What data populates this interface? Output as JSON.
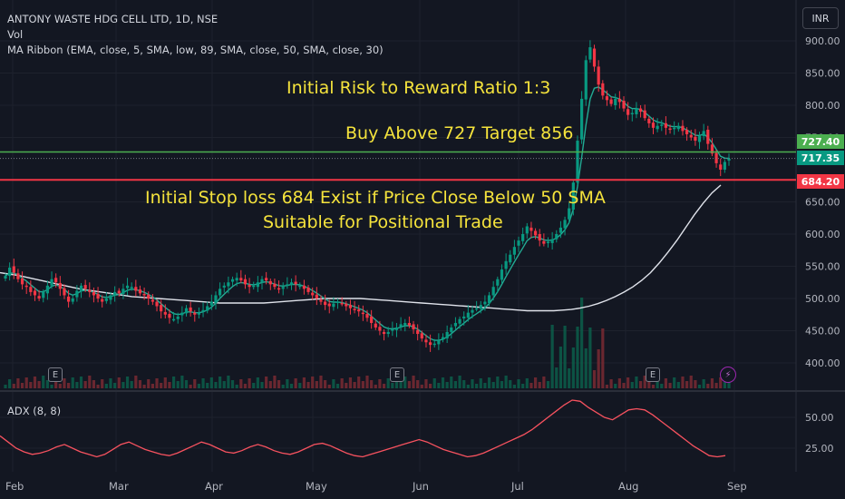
{
  "header": {
    "title": "ANTONY WASTE HDG CELL LTD, 1D, NSE",
    "vol_label": "Vol",
    "ma_label": "MA Ribbon (EMA, close, 5, SMA, low, 89, SMA, close, 50, SMA, close, 30)",
    "currency": "INR"
  },
  "annotations": {
    "line1": "Initial Risk to Reward Ratio 1:3",
    "line2": "Buy Above 727 Target 856",
    "line3": "Initial Stop loss 684 Exist if Price Close Below 50 SMA",
    "line4": "Suitable for Positional Trade"
  },
  "price_tags": {
    "buy": "727.40",
    "last": "717.35",
    "stop": "684.20"
  },
  "adx": {
    "label": "ADX (8, 8)"
  },
  "events": {
    "earnings_label": "E",
    "dividend_icon": "lightning-bolt-icon"
  },
  "colors": {
    "up": "#089981",
    "down": "#f23645",
    "buy_line": "#4caf50",
    "stop_line": "#f23645",
    "last_tag": "#089981",
    "sma50": "#e0e3eb",
    "ema5": "#22ab94",
    "adx_line": "#f7525f",
    "annotation": "#f5e33c"
  },
  "chart_data": [
    {
      "type": "line",
      "title": "ANTONY WASTE HDG CELL LTD, 1D, NSE",
      "ylim": [
        375,
        910
      ],
      "y_ticks": [
        "900.00",
        "850.00",
        "800.00",
        "750.00",
        "650.00",
        "600.00",
        "550.00",
        "500.00",
        "450.00",
        "400.00"
      ],
      "x_ticks": [
        "Feb",
        "Mar",
        "Apr",
        "May",
        "Jun",
        "Jul",
        "Aug",
        "Sep"
      ],
      "levels": {
        "buy": 727.4,
        "last": 717.35,
        "stop": 684.2
      },
      "closes": [
        535,
        548,
        540,
        530,
        522,
        518,
        510,
        505,
        500,
        510,
        520,
        530,
        525,
        515,
        505,
        495,
        500,
        512,
        520,
        515,
        510,
        505,
        500,
        495,
        500,
        505,
        510,
        508,
        515,
        520,
        518,
        512,
        508,
        505,
        500,
        495,
        488,
        480,
        475,
        470,
        468,
        472,
        478,
        485,
        480,
        475,
        478,
        482,
        488,
        495,
        505,
        515,
        520,
        525,
        530,
        532,
        528,
        522,
        518,
        520,
        525,
        530,
        528,
        522,
        518,
        515,
        518,
        522,
        525,
        522,
        520,
        515,
        510,
        505,
        500,
        495,
        490,
        488,
        492,
        495,
        492,
        488,
        485,
        482,
        480,
        476,
        470,
        462,
        455,
        450,
        445,
        448,
        452,
        455,
        460,
        462,
        458,
        452,
        445,
        438,
        432,
        428,
        430,
        435,
        440,
        448,
        455,
        462,
        468,
        472,
        478,
        482,
        485,
        490,
        495,
        505,
        518,
        530,
        545,
        558,
        568,
        580,
        590,
        600,
        612,
        605,
        598,
        590,
        585,
        588,
        592,
        600,
        610,
        622,
        640,
        680,
        745,
        810,
        870,
        890,
        860,
        832,
        815,
        808,
        802,
        810,
        805,
        795,
        785,
        788,
        795,
        790,
        780,
        772,
        765,
        768,
        770,
        765,
        762,
        765,
        768,
        760,
        755,
        750,
        745,
        752,
        760,
        740,
        725,
        710,
        700,
        712,
        717
      ],
      "sma50": [
        540,
        538,
        536,
        533,
        530,
        527,
        524,
        521,
        518,
        515,
        513,
        511,
        509,
        507,
        505,
        503,
        502,
        501,
        500,
        499,
        498,
        497,
        496,
        495,
        494,
        493,
        493,
        493,
        493,
        493,
        493,
        494,
        495,
        496,
        497,
        498,
        499,
        500,
        500,
        500,
        500,
        500,
        499,
        498,
        497,
        496,
        495,
        494,
        493,
        492,
        491,
        490,
        489,
        488,
        487,
        486,
        485,
        484,
        483,
        482,
        481,
        481,
        481,
        481,
        482,
        483,
        485,
        488,
        492,
        497,
        503,
        510,
        518,
        528,
        540,
        555,
        572,
        590,
        610,
        630,
        648,
        664,
        676
      ]
    },
    {
      "type": "line",
      "title": "ADX (8, 8)",
      "ylim": [
        12,
        66
      ],
      "y_ticks": [
        "50.00",
        "25.00"
      ],
      "values": [
        35,
        30,
        25,
        22,
        20,
        21,
        23,
        26,
        28,
        25,
        22,
        20,
        18,
        20,
        24,
        28,
        30,
        27,
        24,
        22,
        20,
        19,
        21,
        24,
        27,
        30,
        28,
        25,
        22,
        21,
        23,
        26,
        28,
        26,
        23,
        21,
        20,
        22,
        25,
        28,
        29,
        27,
        24,
        21,
        19,
        18,
        20,
        22,
        24,
        26,
        28,
        30,
        32,
        30,
        27,
        24,
        22,
        20,
        18,
        19,
        21,
        24,
        27,
        30,
        33,
        36,
        40,
        45,
        50,
        55,
        60,
        64,
        63,
        58,
        54,
        50,
        48,
        52,
        56,
        57,
        56,
        52,
        47,
        42,
        37,
        32,
        27,
        23,
        19,
        18,
        19
      ]
    }
  ]
}
